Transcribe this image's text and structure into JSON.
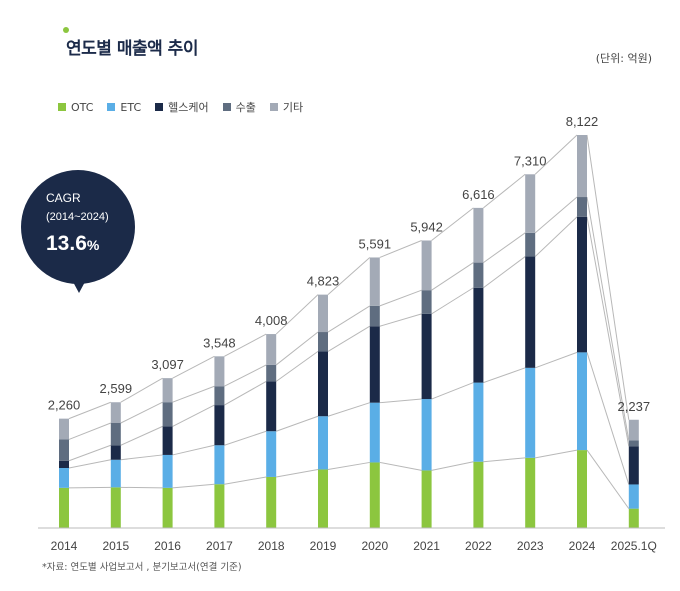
{
  "title": "연도별 매출액 추이",
  "unit": "(단위: 억원)",
  "source": "*자료: 연도별 사업보고서 , 분기보고서(연결 기준)",
  "cagr": {
    "label": "CAGR",
    "period": "(2014~2024)",
    "value": "13.6",
    "suffix": "%"
  },
  "colors": {
    "otc": "#8cc63f",
    "etc": "#5aaee6",
    "health": "#1b2a48",
    "export": "#5f6d80",
    "other": "#a3aab6",
    "bubble": "#1b2a48"
  },
  "chart_data": {
    "type": "bar",
    "stacked": true,
    "categories": [
      "2014",
      "2015",
      "2016",
      "2017",
      "2018",
      "2019",
      "2020",
      "2021",
      "2022",
      "2023",
      "2024",
      "2025.1Q"
    ],
    "totals": [
      2260,
      2599,
      3097,
      3548,
      4008,
      4823,
      5591,
      5942,
      6616,
      7310,
      8122,
      2237
    ],
    "total_labels": [
      "2,260",
      "2,599",
      "3,097",
      "3,548",
      "4,008",
      "4,823",
      "5,591",
      "5,942",
      "6,616",
      "7,310",
      "8,122",
      "2,237"
    ],
    "series": [
      {
        "name": "OTC",
        "color": "#8cc63f",
        "values": [
          830,
          840,
          830,
          905,
          1055,
          1210,
          1355,
          1190,
          1370,
          1450,
          1610,
          400
        ]
      },
      {
        "name": "ETC",
        "color": "#5aaee6",
        "values": [
          410,
          570,
          680,
          805,
          945,
          1100,
          1235,
          1475,
          1635,
          1860,
          2020,
          500
        ]
      },
      {
        "name": "헬스케어",
        "color": "#1b2a48",
        "values": [
          150,
          300,
          590,
          830,
          1030,
          1340,
          1580,
          1760,
          1960,
          2300,
          2800,
          790
        ]
      },
      {
        "name": "수출",
        "color": "#5f6d80",
        "values": [
          440,
          460,
          500,
          390,
          340,
          400,
          420,
          490,
          520,
          490,
          410,
          120
        ]
      },
      {
        "name": "기타",
        "color": "#a3aab6",
        "values": [
          430,
          429,
          497,
          618,
          638,
          773,
          1001,
          1027,
          1131,
          1210,
          1282,
          427
        ]
      }
    ],
    "ylim": [
      0,
      8500
    ],
    "legend": "top-left",
    "grid": false
  }
}
